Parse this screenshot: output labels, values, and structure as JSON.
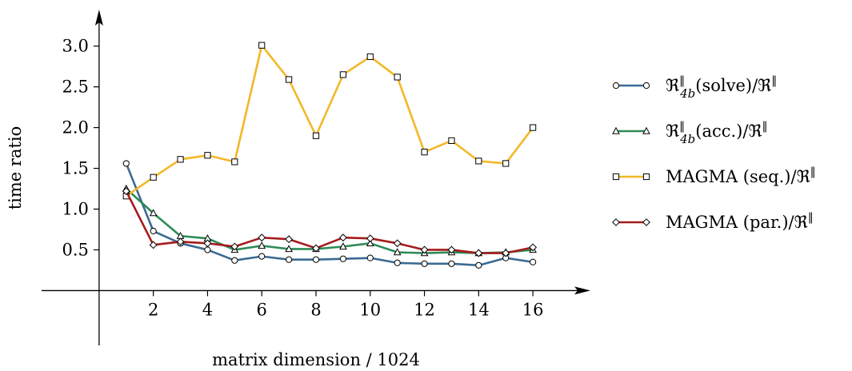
{
  "chart_data": {
    "type": "line",
    "xlabel": "matrix dimension / 1024",
    "ylabel": "time ratio",
    "xlim": [
      -1,
      17
    ],
    "ylim": [
      -0.3,
      3.35
    ],
    "xticks": [
      2,
      4,
      6,
      8,
      10,
      12,
      14,
      16
    ],
    "xtick_labels": [
      "2",
      "4",
      "6",
      "8",
      "10",
      "12",
      "14",
      "16"
    ],
    "yticks": [
      0.5,
      1.0,
      1.5,
      2.0,
      2.5,
      3.0
    ],
    "ytick_labels": [
      "0.5",
      "1.0",
      "1.5",
      "2.0",
      "2.5",
      "3.0"
    ],
    "grid": false,
    "legend_position": "right",
    "x": [
      1,
      2,
      3,
      4,
      5,
      6,
      7,
      8,
      9,
      10,
      11,
      12,
      13,
      14,
      15,
      16
    ],
    "series": [
      {
        "name": "ℜ",
        "name_sup": "‖",
        "name_sub": "4b",
        "name_tail": "(solve)/ℜ",
        "name_tail_sup": "‖",
        "color": "#3b6a93",
        "marker": "circle",
        "values": [
          1.56,
          0.73,
          0.58,
          0.5,
          0.37,
          0.42,
          0.38,
          0.38,
          0.39,
          0.4,
          0.34,
          0.33,
          0.33,
          0.31,
          0.4,
          0.35
        ]
      },
      {
        "name": "ℜ",
        "name_sup": "‖",
        "name_sub": "4b",
        "name_tail": "(acc.)/ℜ",
        "name_tail_sup": "‖",
        "color": "#2e8b57",
        "marker": "triangle",
        "values": [
          1.25,
          0.95,
          0.67,
          0.64,
          0.5,
          0.55,
          0.51,
          0.51,
          0.54,
          0.58,
          0.47,
          0.46,
          0.47,
          0.46,
          0.47,
          0.5
        ]
      },
      {
        "name": "MAGMA (seq.)/ℜ",
        "name_sup": "‖",
        "name_sub": "",
        "name_tail": "",
        "name_tail_sup": "",
        "color": "#f2b827",
        "marker": "square",
        "values": [
          1.16,
          1.39,
          1.61,
          1.66,
          1.58,
          3.01,
          2.59,
          1.9,
          2.65,
          2.87,
          2.62,
          1.7,
          1.84,
          1.59,
          1.56,
          2.0
        ]
      },
      {
        "name": "MAGMA (par.)/ℜ",
        "name_sup": "‖",
        "name_sub": "",
        "name_tail": "",
        "name_tail_sup": "",
        "color": "#a51c1c",
        "marker": "diamond",
        "values": [
          1.22,
          0.56,
          0.6,
          0.58,
          0.54,
          0.65,
          0.63,
          0.52,
          0.65,
          0.64,
          0.58,
          0.5,
          0.5,
          0.46,
          0.46,
          0.53
        ]
      }
    ]
  }
}
